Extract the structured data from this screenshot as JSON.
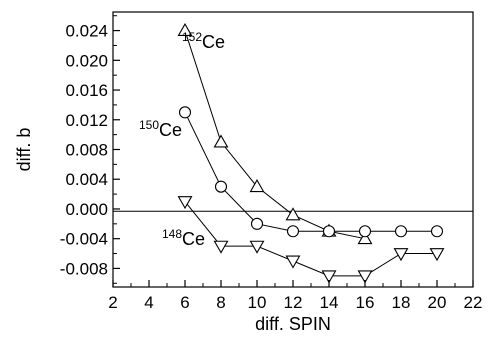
{
  "chart_data": {
    "type": "line",
    "xlabel": "diff. SPIN",
    "ylabel": "diff. b",
    "xlim": [
      2,
      22
    ],
    "ylim": [
      -0.0105,
      0.0265
    ],
    "xticks": [
      "2",
      "4",
      "6",
      "8",
      "10",
      "12",
      "14",
      "16",
      "18",
      "20",
      "22"
    ],
    "yticks": [
      "-0.008",
      "-0.004",
      "0.000",
      "0.004",
      "0.008",
      "0.012",
      "0.016",
      "0.020",
      "0.024"
    ],
    "reference_line_y": -0.0003,
    "series": [
      {
        "label_sup": "152",
        "label": "Ce",
        "marker": "triangle-up",
        "x": [
          6,
          8,
          10,
          12,
          14,
          16
        ],
        "y": [
          0.024,
          0.009,
          0.003,
          -0.0008,
          -0.003,
          -0.004
        ]
      },
      {
        "label_sup": "150",
        "label": "Ce",
        "marker": "circle",
        "x": [
          6,
          8,
          10,
          12,
          14,
          16,
          18,
          20
        ],
        "y": [
          0.013,
          0.003,
          -0.002,
          -0.003,
          -0.003,
          -0.003,
          -0.003,
          -0.003
        ]
      },
      {
        "label_sup": "148",
        "label": "Ce",
        "marker": "triangle-down",
        "x": [
          6,
          8,
          10,
          12,
          14,
          16,
          18,
          20
        ],
        "y": [
          0.001,
          -0.005,
          -0.005,
          -0.007,
          -0.009,
          -0.009,
          -0.006,
          -0.006
        ]
      }
    ]
  }
}
